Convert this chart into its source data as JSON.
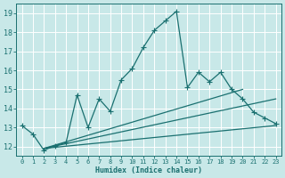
{
  "xlabel": "Humidex (Indice chaleur)",
  "background_color": "#c8e8e8",
  "grid_color": "#b0d8d8",
  "line_color": "#1a7070",
  "xlim": [
    -0.5,
    23.5
  ],
  "ylim": [
    11.5,
    19.5
  ],
  "xticks": [
    0,
    1,
    2,
    3,
    4,
    5,
    6,
    7,
    8,
    9,
    10,
    11,
    12,
    13,
    14,
    15,
    16,
    17,
    18,
    19,
    20,
    21,
    22,
    23
  ],
  "yticks": [
    12,
    13,
    14,
    15,
    16,
    17,
    18,
    19
  ],
  "main_line_x": [
    0,
    1,
    2,
    3,
    4,
    5,
    6,
    7,
    8,
    9,
    10,
    11,
    12,
    13,
    14,
    15,
    16,
    17,
    18,
    19,
    20,
    21,
    22,
    23
  ],
  "main_line_y": [
    13.1,
    12.65,
    11.8,
    12.05,
    12.2,
    14.7,
    13.0,
    14.5,
    13.85,
    15.5,
    16.1,
    17.2,
    18.1,
    18.6,
    19.1,
    15.1,
    15.9,
    15.4,
    15.9,
    15.0,
    14.5,
    13.8,
    13.5,
    13.2
  ],
  "smooth_lines": [
    {
      "x": [
        2,
        20
      ],
      "y": [
        11.9,
        15.0
      ]
    },
    {
      "x": [
        2,
        23
      ],
      "y": [
        11.9,
        14.5
      ]
    },
    {
      "x": [
        2,
        23
      ],
      "y": [
        11.9,
        13.1
      ]
    }
  ],
  "line_width": 0.9,
  "marker": "+",
  "marker_size": 4
}
